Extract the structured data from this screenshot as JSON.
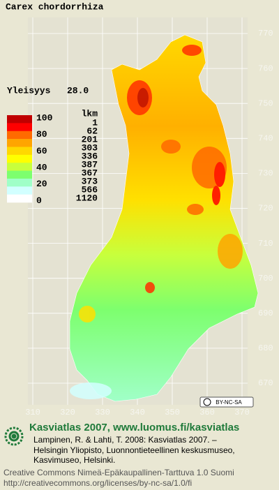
{
  "title": "Carex chordorrhiza",
  "frequency": {
    "label": "Yleisyys",
    "value": "28.0"
  },
  "legend": {
    "scale_labels": [
      100,
      80,
      60,
      40,
      20,
      0
    ],
    "count_header": "lkm",
    "counts": [
      1,
      62,
      201,
      303,
      336,
      387,
      367,
      373,
      566,
      1120
    ],
    "colors": [
      "#c00000",
      "#ff0000",
      "#ff6a00",
      "#ffa500",
      "#ffd800",
      "#ffff00",
      "#c8ff3c",
      "#7dff6e",
      "#a0ffc8",
      "#d2ffff",
      "#ffffff"
    ]
  },
  "axes": {
    "y_ticks": [
      770,
      760,
      750,
      740,
      730,
      720,
      710,
      700,
      690,
      680,
      670
    ],
    "x_ticks": [
      310,
      320,
      330,
      340,
      350,
      360,
      370
    ]
  },
  "license_badge": "BY-NC-SA",
  "footer": {
    "heading": "Kasviatlas 2007, www.luomus.fi/kasviatlas",
    "citation": [
      "Lampinen, R. & Lahti, T. 2008: Kasviatlas 2007. –",
      "Helsingin Yliopisto, Luonnontieteellinen keskusmuseo,",
      "Kasvimuseo, Helsinki."
    ],
    "license": [
      "Creative Commons Nimeä-Epäkaupallinen-Tarttuva 1.0 Suomi",
      "http://creativecommons.org/licenses/by-nc-sa/1.0/fi"
    ]
  }
}
